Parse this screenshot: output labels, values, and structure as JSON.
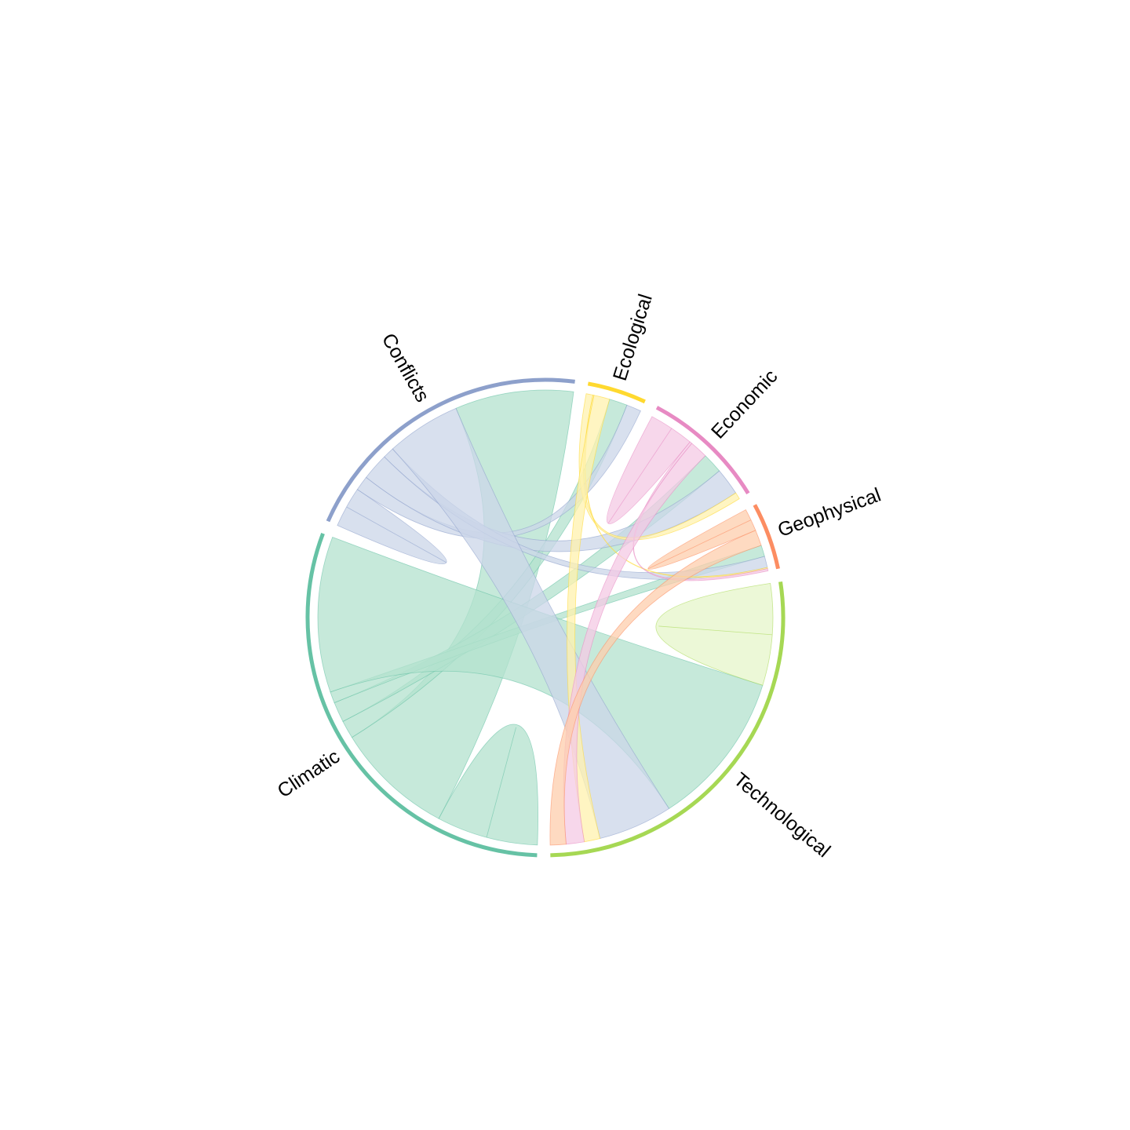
{
  "chart_data": {
    "type": "chord",
    "title": "",
    "groups": [
      {
        "name": "Climatic",
        "color": "#66c2a5",
        "ribbon_color": "#b3e2cd"
      },
      {
        "name": "Conflicts",
        "color": "#8da0cb",
        "ribbon_color": "#cbd5e8"
      },
      {
        "name": "Ecological",
        "color": "#ffd92f",
        "ribbon_color": "#fff2ae"
      },
      {
        "name": "Economic",
        "color": "#e78ac3",
        "ribbon_color": "#f4cae4"
      },
      {
        "name": "Geophysical",
        "color": "#fc8d62",
        "ribbon_color": "#fdcdac"
      },
      {
        "name": "Technological",
        "color": "#a6d854",
        "ribbon_color": "#e6f5c9"
      }
    ],
    "links": [
      {
        "source": "Climatic",
        "target": "Climatic",
        "value": 4.5
      },
      {
        "source": "Climatic",
        "target": "Conflicts",
        "value": 10.5
      },
      {
        "source": "Climatic",
        "target": "Ecological",
        "value": 1.6
      },
      {
        "source": "Climatic",
        "target": "Economic",
        "value": 1.8
      },
      {
        "source": "Climatic",
        "target": "Geophysical",
        "value": 1.0
      },
      {
        "source": "Climatic",
        "target": "Technological",
        "value": 13.8
      },
      {
        "source": "Conflicts",
        "target": "Conflicts",
        "value": 1.8
      },
      {
        "source": "Conflicts",
        "target": "Ecological",
        "value": 1.3
      },
      {
        "source": "Conflicts",
        "target": "Economic",
        "value": 2.4
      },
      {
        "source": "Conflicts",
        "target": "Geophysical",
        "value": 1.0
      },
      {
        "source": "Conflicts",
        "target": "Technological",
        "value": 6.6
      },
      {
        "source": "Ecological",
        "target": "Economic",
        "value": 0.6
      },
      {
        "source": "Ecological",
        "target": "Geophysical",
        "value": 0.1
      },
      {
        "source": "Ecological",
        "target": "Technological",
        "value": 1.4
      },
      {
        "source": "Economic",
        "target": "Economic",
        "value": 2.0
      },
      {
        "source": "Economic",
        "target": "Geophysical",
        "value": 0.2
      },
      {
        "source": "Economic",
        "target": "Technological",
        "value": 1.6
      },
      {
        "source": "Geophysical",
        "target": "Geophysical",
        "value": 1.0
      },
      {
        "source": "Geophysical",
        "target": "Technological",
        "value": 1.4
      },
      {
        "source": "Technological",
        "target": "Technological",
        "value": 4.5
      }
    ]
  }
}
